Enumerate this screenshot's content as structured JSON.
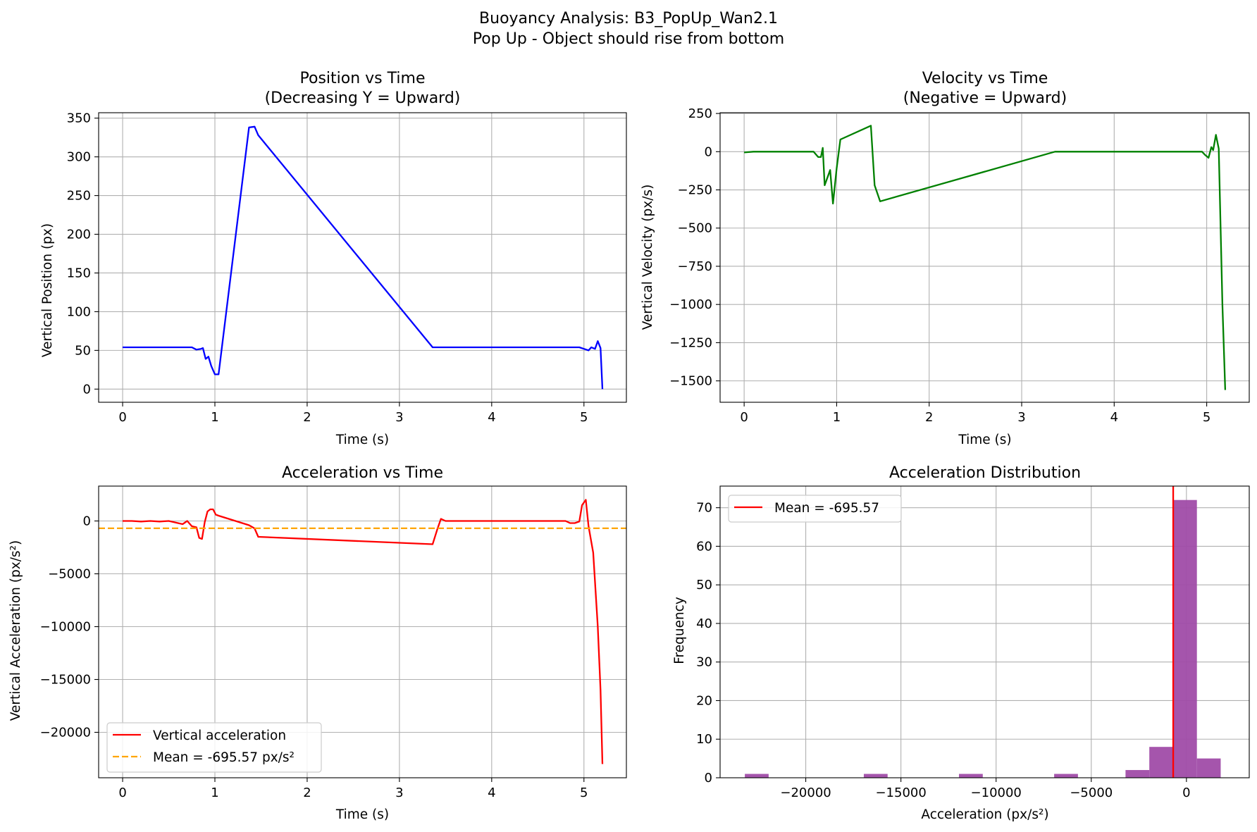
{
  "figure": {
    "title_line1": "Buoyancy Analysis: B3_PopUp_Wan2.1",
    "title_line2": "Pop Up - Object should rise from bottom"
  },
  "colors": {
    "position": "#0000ff",
    "velocity": "#008000",
    "acceleration": "#ff0000",
    "mean_line": "#ffa500",
    "histogram": "#a04ca8",
    "hist_mean": "#ff0000",
    "grid": "#b0b0b0"
  },
  "chart_data": [
    {
      "id": "position",
      "type": "line",
      "title_line1": "Position vs Time",
      "title_line2": "(Decreasing Y = Upward)",
      "xlabel": "Time (s)",
      "ylabel": "Vertical Position (px)",
      "xlim": [
        -0.26,
        5.46
      ],
      "ylim": [
        -17,
        357
      ],
      "xticks": [
        0,
        1,
        2,
        3,
        4,
        5
      ],
      "xtick_labels": [
        "0",
        "1",
        "2",
        "3",
        "4",
        "5"
      ],
      "yticks": [
        0,
        50,
        100,
        150,
        200,
        250,
        300,
        350
      ],
      "ytick_labels": [
        "0",
        "50",
        "100",
        "150",
        "200",
        "250",
        "300",
        "350"
      ],
      "series": [
        {
          "name": "Vertical position",
          "color": "#0000ff",
          "x": [
            0,
            0.1,
            0.2,
            0.3,
            0.4,
            0.5,
            0.6,
            0.7,
            0.75,
            0.8,
            0.85,
            0.87,
            0.9,
            0.93,
            0.96,
            1.0,
            1.04,
            1.37,
            1.43,
            1.47,
            3.36,
            3.45,
            3.6,
            3.8,
            4.0,
            4.2,
            4.4,
            4.6,
            4.8,
            4.95,
            5.0,
            5.05,
            5.08,
            5.12,
            5.15,
            5.18,
            5.2
          ],
          "y": [
            54,
            54,
            54,
            54,
            54,
            54,
            54,
            54,
            54,
            51,
            52,
            53,
            39,
            42,
            30,
            19,
            19,
            338,
            339,
            328,
            54,
            54,
            54,
            54,
            54,
            54,
            54,
            54,
            54,
            54,
            52,
            50,
            54,
            52,
            62,
            53,
            0
          ]
        }
      ]
    },
    {
      "id": "velocity",
      "type": "line",
      "title_line1": "Velocity vs Time",
      "title_line2": "(Negative = Upward)",
      "xlabel": "Time (s)",
      "ylabel": "Vertical Velocity (px/s)",
      "xlim": [
        -0.26,
        5.46
      ],
      "ylim": [
        -1640,
        255
      ],
      "xticks": [
        0,
        1,
        2,
        3,
        4,
        5
      ],
      "xtick_labels": [
        "0",
        "1",
        "2",
        "3",
        "4",
        "5"
      ],
      "yticks": [
        250,
        0,
        -250,
        -500,
        -750,
        -1000,
        -1250,
        -1500
      ],
      "ytick_labels": [
        "250",
        "0",
        "−250",
        "−500",
        "−750",
        "−1000",
        "−1250",
        "−1500"
      ],
      "series": [
        {
          "name": "Vertical velocity",
          "color": "#008000",
          "x": [
            0,
            0.1,
            0.2,
            0.3,
            0.4,
            0.5,
            0.6,
            0.7,
            0.75,
            0.8,
            0.83,
            0.85,
            0.87,
            0.93,
            0.96,
            1.0,
            1.04,
            1.37,
            1.41,
            1.47,
            3.36,
            3.45,
            3.6,
            3.8,
            4.0,
            4.2,
            4.4,
            4.6,
            4.8,
            4.95,
            4.98,
            5.02,
            5.05,
            5.07,
            5.1,
            5.13,
            5.17,
            5.2
          ],
          "y": [
            -5,
            0,
            0,
            0,
            0,
            0,
            0,
            0,
            0,
            -35,
            -35,
            25,
            -220,
            -120,
            -340,
            -110,
            80,
            170,
            -220,
            -325,
            0,
            0,
            0,
            0,
            0,
            0,
            0,
            0,
            0,
            0,
            -20,
            -40,
            30,
            10,
            110,
            20,
            -1000,
            -1560
          ]
        }
      ]
    },
    {
      "id": "acceleration",
      "type": "line",
      "title_line1": "Acceleration vs Time",
      "xlabel": "Time (s)",
      "ylabel": "Vertical Acceleration (px/s²)",
      "xlim": [
        -0.26,
        5.46
      ],
      "ylim": [
        -24300,
        3300
      ],
      "xticks": [
        0,
        1,
        2,
        3,
        4,
        5
      ],
      "xtick_labels": [
        "0",
        "1",
        "2",
        "3",
        "4",
        "5"
      ],
      "yticks": [
        0,
        -5000,
        -10000,
        -15000,
        -20000
      ],
      "ytick_labels": [
        "0",
        "−5000",
        "−10000",
        "−15000",
        "−20000"
      ],
      "series": [
        {
          "name": "Vertical acceleration",
          "color": "#ff0000",
          "style": "solid",
          "x": [
            0,
            0.1,
            0.2,
            0.3,
            0.4,
            0.5,
            0.55,
            0.6,
            0.65,
            0.7,
            0.75,
            0.8,
            0.83,
            0.86,
            0.89,
            0.92,
            0.95,
            0.98,
            1.01,
            1.04,
            1.37,
            1.43,
            1.47,
            3.36,
            3.41,
            3.45,
            3.5,
            3.6,
            3.8,
            4.0,
            4.2,
            4.4,
            4.6,
            4.8,
            4.85,
            4.9,
            4.95,
            4.98,
            5.02,
            5.05,
            5.1,
            5.15,
            5.18,
            5.2
          ],
          "y": [
            0,
            0,
            -50,
            0,
            -50,
            0,
            -100,
            -200,
            -300,
            0,
            -500,
            -600,
            -1600,
            -1700,
            -100,
            900,
            1100,
            1100,
            600,
            500,
            -400,
            -700,
            -1500,
            -2200,
            -800,
            200,
            0,
            0,
            0,
            0,
            0,
            0,
            0,
            0,
            -200,
            -200,
            -50,
            1500,
            2000,
            -500,
            -3000,
            -10000,
            -16000,
            -23000
          ]
        },
        {
          "name": "Mean = -695.57 px/s²",
          "color": "#ffa500",
          "style": "dashed",
          "x": [
            -0.26,
            5.46
          ],
          "y": [
            -695.57,
            -695.57
          ]
        }
      ],
      "legend": {
        "position": "lower-left",
        "entries": [
          "Vertical acceleration",
          "Mean = -695.57 px/s²"
        ]
      }
    },
    {
      "id": "distribution",
      "type": "histogram",
      "title_line1": "Acceleration Distribution",
      "xlabel": "Acceleration (px/s²)",
      "ylabel": "Frequency",
      "xlim": [
        -24500,
        3300
      ],
      "ylim": [
        0,
        75.6
      ],
      "xticks": [
        -20000,
        -15000,
        -10000,
        -5000,
        0
      ],
      "xtick_labels": [
        "−20000",
        "−15000",
        "−10000",
        "−5000",
        "0"
      ],
      "yticks": [
        0,
        10,
        20,
        30,
        40,
        50,
        60,
        70
      ],
      "ytick_labels": [
        "0",
        "10",
        "20",
        "30",
        "40",
        "50",
        "60",
        "70"
      ],
      "bins": [
        {
          "x0": -23200,
          "x1": -21950,
          "count": 1
        },
        {
          "x0": -16950,
          "x1": -15700,
          "count": 1
        },
        {
          "x0": -11950,
          "x1": -10700,
          "count": 1
        },
        {
          "x0": -6950,
          "x1": -5700,
          "count": 1
        },
        {
          "x0": -3200,
          "x1": -1950,
          "count": 2
        },
        {
          "x0": -1950,
          "x1": -700,
          "count": 8
        },
        {
          "x0": -700,
          "x1": 550,
          "count": 72
        },
        {
          "x0": 550,
          "x1": 1800,
          "count": 5
        }
      ],
      "mean_line": {
        "x": -695.57,
        "color": "#ff0000"
      },
      "legend": {
        "position": "top-left",
        "entries": [
          "Mean = -695.57"
        ]
      }
    }
  ]
}
